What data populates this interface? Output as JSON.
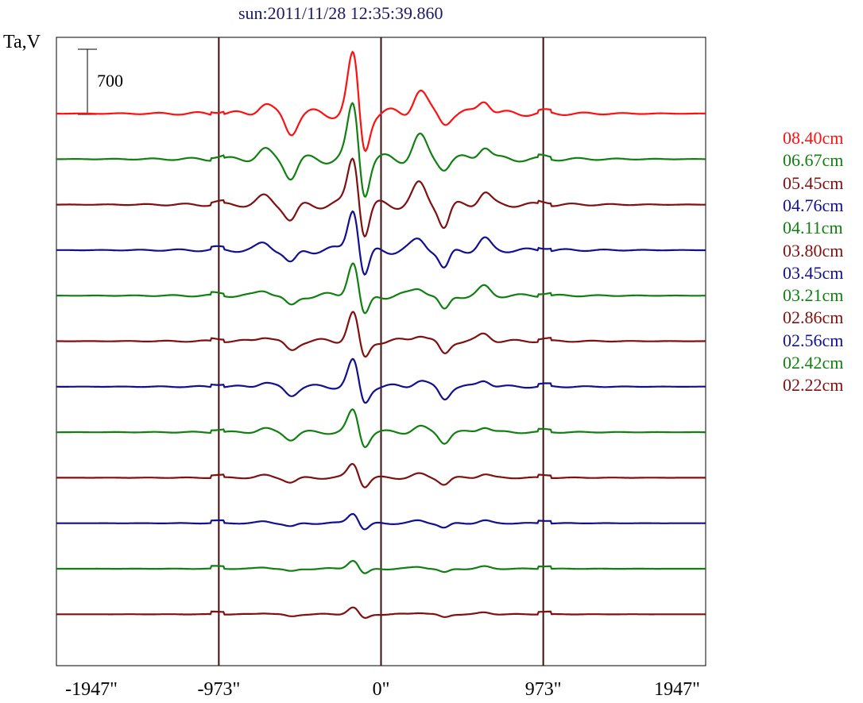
{
  "chart_data": {
    "type": "line",
    "title": "sun:2011/11/28 12:35:39.860",
    "ylabel": "Ta,V",
    "scale_bar_label": "700",
    "xlabel": "",
    "x_ticks": [
      "-1947\"",
      "-973\"",
      "0\"",
      "973\"",
      "1947\""
    ],
    "x_tick_values": [
      -1947,
      -973,
      0,
      973,
      1947
    ],
    "xlim": [
      -1947,
      1947
    ],
    "vertical_lines": [
      -973,
      0,
      973
    ],
    "series": [
      {
        "name": "08.40cm",
        "color": "#ff1010",
        "amp": 1.0
      },
      {
        "name": "06.67cm",
        "color": "#108010",
        "amp": 0.95
      },
      {
        "name": "05.45cm",
        "color": "#801010",
        "amp": 0.85
      },
      {
        "name": "04.76cm",
        "color": "#101090",
        "amp": 0.75
      },
      {
        "name": "04.11cm",
        "color": "#108010",
        "amp": 0.6
      },
      {
        "name": "03.80cm",
        "color": "#801010",
        "amp": 0.5
      },
      {
        "name": "03.45cm",
        "color": "#101090",
        "amp": 0.45
      },
      {
        "name": "03.21cm",
        "color": "#108010",
        "amp": 0.38
      },
      {
        "name": "02.86cm",
        "color": "#801010",
        "amp": 0.25
      },
      {
        "name": "02.56cm",
        "color": "#101090",
        "amp": 0.18
      },
      {
        "name": "02.42cm",
        "color": "#108010",
        "amp": 0.15
      },
      {
        "name": "02.22cm",
        "color": "#801010",
        "amp": 0.12
      }
    ]
  }
}
